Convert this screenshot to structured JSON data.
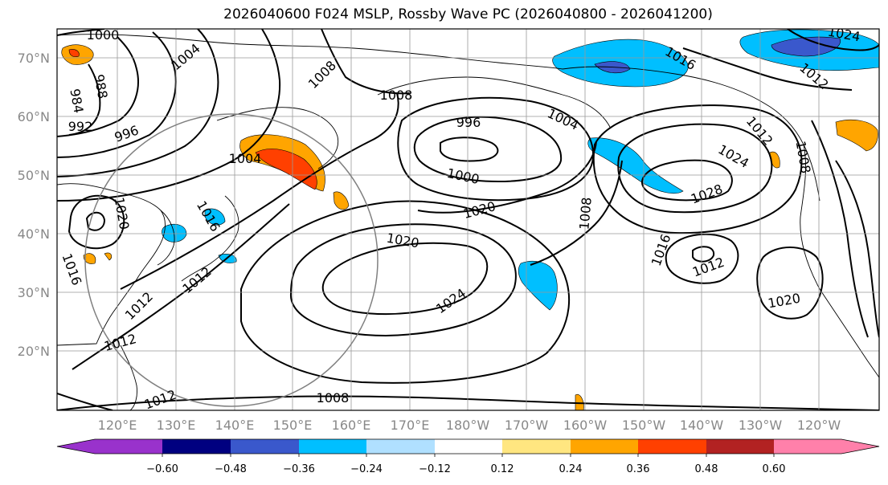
{
  "title": "2026040600 F024 MSLP, Rossby Wave PC (2026040800 - 2026041200)",
  "lat_labels": [
    "70°N",
    "60°N",
    "50°N",
    "40°N",
    "30°N",
    "20°N"
  ],
  "lon_labels": [
    "120°E",
    "130°E",
    "140°E",
    "150°E",
    "160°E",
    "170°E",
    "180°W",
    "170°W",
    "160°W",
    "150°W",
    "140°W",
    "130°W",
    "120°W"
  ],
  "contour_labels": [
    "1000",
    "1004",
    "1008",
    "984",
    "988",
    "992",
    "996",
    "1008",
    "996",
    "1004",
    "1000",
    "1020",
    "1016",
    "1020",
    "1020",
    "1024",
    "1012",
    "1012",
    "1016",
    "1012",
    "1008",
    "1012",
    "1016",
    "1028",
    "1024",
    "1012",
    "1020",
    "1008",
    "1024",
    "1012",
    "1016",
    "1012",
    "1004",
    "1008"
  ],
  "colorbar": {
    "ticks": [
      "−0.60",
      "−0.48",
      "−0.36",
      "−0.24",
      "−0.12",
      "0.12",
      "0.24",
      "0.36",
      "0.48",
      "0.60"
    ],
    "colors": [
      "#9932cc",
      "#000080",
      "#3a58cc",
      "#00bfff",
      "#b0e0ff",
      "#ffffff",
      "#ffe680",
      "#ffa500",
      "#ff4000",
      "#b22222",
      "#ff80aa"
    ]
  },
  "colors": {
    "neg_light": "#00bfff",
    "neg_mid": "#3a58cc",
    "pos_light": "#ffa500",
    "pos_dark": "#ff4000",
    "contour": "#000000",
    "grid": "#888888"
  }
}
